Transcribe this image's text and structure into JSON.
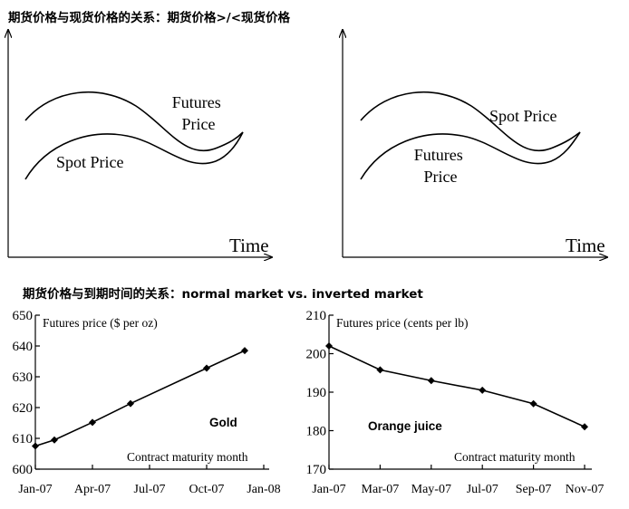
{
  "headings": {
    "top": "期货价格与现货价格的关系：期货价格>/<现货价格",
    "bottom": "期货价格与到期时间的关系：normal market vs. inverted market"
  },
  "chart_data": [
    {
      "type": "line",
      "x_label": "Time",
      "series": [
        {
          "name": "Futures\nPrice",
          "position": "upper"
        },
        {
          "name": "Spot Price",
          "position": "lower"
        }
      ],
      "axis_ticks": false
    },
    {
      "type": "line",
      "x_label": "Time",
      "series": [
        {
          "name": "Spot Price",
          "position": "upper"
        },
        {
          "name": "Futures\nPrice",
          "position": "lower"
        }
      ],
      "axis_ticks": false
    },
    {
      "type": "line",
      "title": "Futures price ($ per oz)",
      "x_label": "Contract maturity month",
      "series_label": "Gold",
      "x_ticks": [
        "Jan-07",
        "Apr-07",
        "Jul-07",
        "Oct-07",
        "Jan-08"
      ],
      "x_range": [
        0,
        12.5
      ],
      "y_ticks": [
        600,
        610,
        620,
        630,
        640,
        650
      ],
      "ylim": [
        600,
        650
      ],
      "series": [
        {
          "name": "Gold",
          "points": [
            [
              0,
              607.5
            ],
            [
              1,
              609.5
            ],
            [
              3,
              615.2
            ],
            [
              5,
              621.3
            ],
            [
              9,
              632.8
            ],
            [
              11,
              638.5
            ]
          ]
        }
      ]
    },
    {
      "type": "line",
      "title": "Futures price (cents per lb)",
      "x_label": "Contract maturity month",
      "series_label": "Orange juice",
      "x_ticks": [
        "Jan-07",
        "Mar-07",
        "May-07",
        "Jul-07",
        "Sep-07",
        "Nov-07"
      ],
      "x_range": [
        0,
        10
      ],
      "y_ticks": [
        170,
        180,
        190,
        200,
        210
      ],
      "ylim": [
        170,
        210
      ],
      "series": [
        {
          "name": "Orange juice",
          "points": [
            [
              0,
              202
            ],
            [
              2,
              195.8
            ],
            [
              4,
              193
            ],
            [
              6,
              190.5
            ],
            [
              8,
              187
            ],
            [
              10,
              181
            ]
          ]
        }
      ]
    }
  ]
}
